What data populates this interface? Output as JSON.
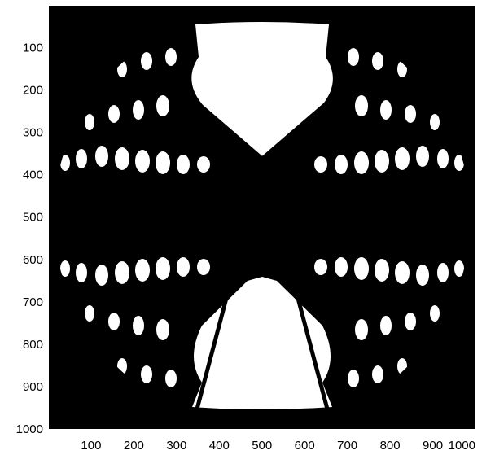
{
  "chart_data": {
    "type": "heatmap",
    "title": "",
    "xlabel": "",
    "ylabel": "",
    "xlim": [
      1,
      1000
    ],
    "ylim": [
      1,
      1000
    ],
    "y_axis_direction": "down",
    "x_ticks": [
      "100",
      "200",
      "300",
      "400",
      "500",
      "600",
      "700",
      "800",
      "900",
      "1000"
    ],
    "y_ticks": [
      "100",
      "200",
      "300",
      "400",
      "500",
      "600",
      "700",
      "800",
      "900",
      "1000"
    ],
    "colormap": [
      "#000000",
      "#ffffff"
    ],
    "grid": false,
    "legend": "none",
    "content": "binary interference fringe image"
  }
}
